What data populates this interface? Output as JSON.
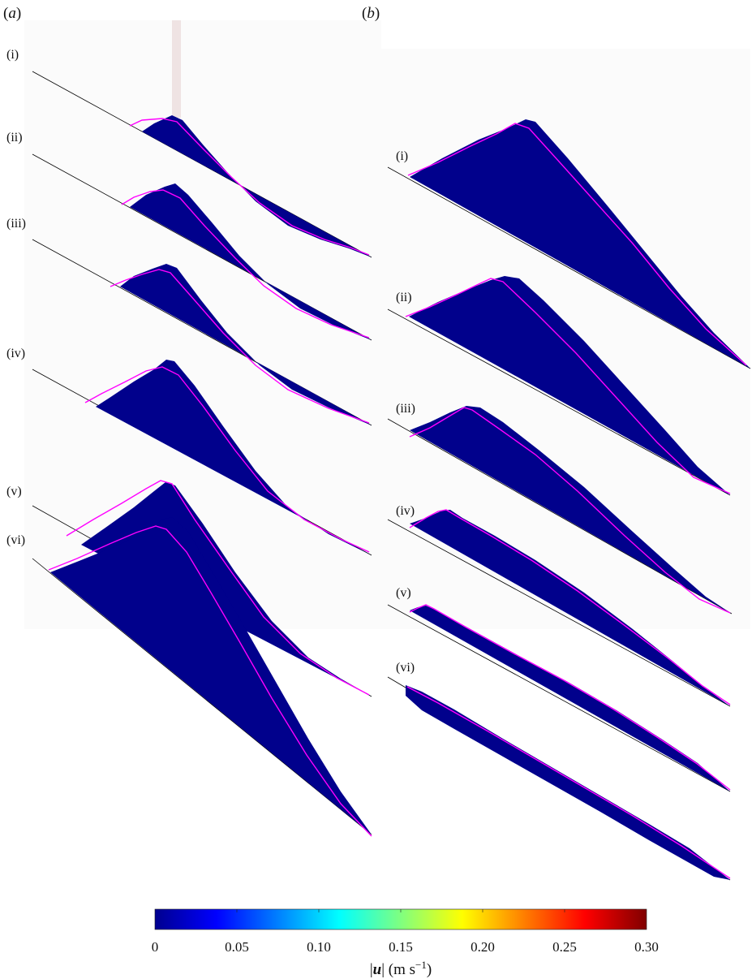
{
  "figure": {
    "panel_a": {
      "letter": "a",
      "subpanels": [
        "(i)",
        "(ii)",
        "(iii)",
        "(iv)",
        "(v)",
        "(vi)"
      ]
    },
    "panel_b": {
      "letter": "b",
      "subpanels": [
        "(i)",
        "(ii)",
        "(iii)",
        "(iv)",
        "(v)",
        "(vi)"
      ]
    },
    "colors": {
      "pile_fill": "#01018c",
      "profile_line": "#ff00ff",
      "slope_line": "#000000"
    },
    "colorbar": {
      "ticks": [
        "0",
        "0.05",
        "0.10",
        "0.15",
        "0.20",
        "0.25",
        "0.30"
      ],
      "colormap": "jet",
      "range": [
        0,
        0.3
      ]
    }
  }
}
